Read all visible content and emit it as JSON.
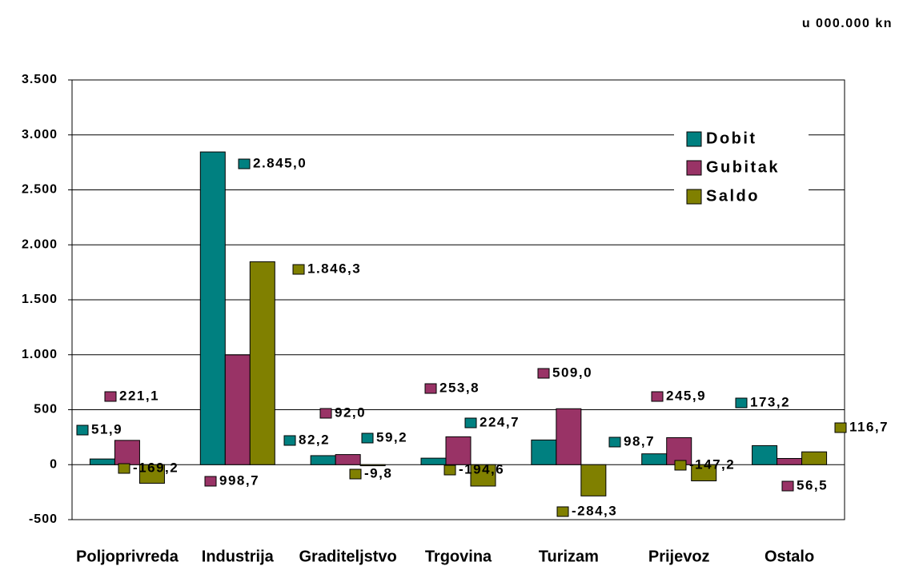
{
  "chart_data": {
    "type": "bar",
    "annotation": "u 000.000 kn",
    "categories": [
      "Poljoprivreda",
      "Industrija",
      "Graditeljstvo",
      "Trgovina",
      "Turizam",
      "Prijevoz",
      "Ostalo"
    ],
    "series": [
      {
        "name": "Dobit",
        "color": "#008080",
        "values": [
          51.9,
          2845.0,
          82.2,
          59.2,
          224.7,
          98.7,
          173.2
        ],
        "value_labels": [
          "51,9",
          "2.845,0",
          "82,2",
          "59,2",
          "224,7",
          "98,7",
          "173,2"
        ]
      },
      {
        "name": "Gubitak",
        "color": "#993366",
        "values": [
          221.1,
          998.7,
          92.0,
          253.8,
          509.0,
          245.9,
          56.5
        ],
        "value_labels": [
          "221,1",
          "998,7",
          "92,0",
          "253,8",
          "509,0",
          "245,9",
          "56,5"
        ]
      },
      {
        "name": "Saldo",
        "color": "#808000",
        "values": [
          -169.2,
          1846.3,
          -9.8,
          -194.6,
          -284.3,
          -147.2,
          116.7
        ],
        "value_labels": [
          "-169,2",
          "1.846,3",
          "-9,8",
          "-194,6",
          "-284,3",
          "-147,2",
          "116,7"
        ]
      }
    ],
    "ylim": [
      -500,
      3500
    ],
    "yticks": [
      -500,
      0,
      500,
      {
        "value": 1000,
        "label": "1.000"
      },
      {
        "value": 1500,
        "label": "1.500"
      },
      {
        "value": 2000,
        "label": "2.000"
      },
      {
        "value": 2500,
        "label": "2.500"
      },
      {
        "value": 3000,
        "label": "3.000"
      },
      {
        "value": 3500,
        "label": "3.500"
      }
    ],
    "grid": true,
    "legend": "upper right"
  }
}
